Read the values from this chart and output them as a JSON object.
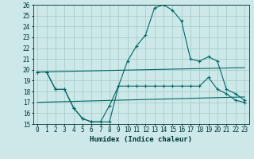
{
  "xlabel": "Humidex (Indice chaleur)",
  "ylabel": "",
  "xlim": [
    -0.5,
    23.5
  ],
  "ylim": [
    15,
    26
  ],
  "yticks": [
    15,
    16,
    17,
    18,
    19,
    20,
    21,
    22,
    23,
    24,
    25,
    26
  ],
  "xticks": [
    0,
    1,
    2,
    3,
    4,
    5,
    6,
    7,
    8,
    9,
    10,
    11,
    12,
    13,
    14,
    15,
    16,
    17,
    18,
    19,
    20,
    21,
    22,
    23
  ],
  "background_color": "#cde8e8",
  "grid_color": "#aacccc",
  "line_color": "#006666",
  "lines": [
    {
      "x": [
        0,
        23
      ],
      "y": [
        19.8,
        20.2
      ],
      "has_markers": false
    },
    {
      "x": [
        0,
        23
      ],
      "y": [
        17.0,
        17.5
      ],
      "has_markers": false
    },
    {
      "x": [
        0,
        1,
        2,
        3,
        4,
        5,
        6,
        7,
        8,
        9,
        10,
        11,
        12,
        13,
        14,
        15,
        16,
        17,
        18,
        19,
        20,
        21,
        22,
        23
      ],
      "y": [
        19.8,
        19.8,
        18.2,
        18.2,
        16.5,
        15.5,
        15.2,
        15.2,
        15.2,
        18.5,
        18.5,
        18.5,
        18.5,
        18.5,
        18.5,
        18.5,
        18.5,
        18.5,
        18.5,
        19.3,
        18.2,
        17.8,
        17.2,
        17.0
      ],
      "has_markers": true
    },
    {
      "x": [
        0,
        1,
        2,
        3,
        4,
        5,
        6,
        7,
        8,
        9,
        10,
        11,
        12,
        13,
        14,
        15,
        16,
        17,
        18,
        19,
        20,
        21,
        22,
        23
      ],
      "y": [
        19.8,
        19.8,
        18.2,
        18.2,
        16.5,
        15.5,
        15.2,
        15.2,
        16.7,
        18.5,
        20.8,
        22.2,
        23.2,
        25.7,
        26.0,
        25.5,
        24.5,
        21.0,
        20.8,
        21.2,
        20.8,
        18.2,
        17.8,
        17.2
      ],
      "has_markers": true
    }
  ]
}
